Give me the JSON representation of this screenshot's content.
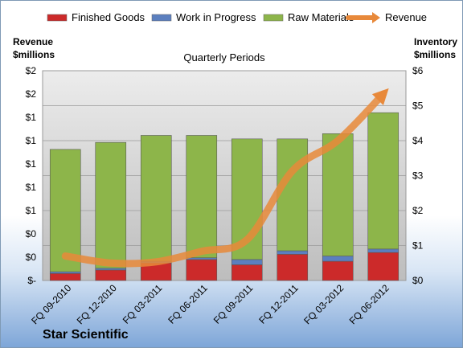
{
  "company_name": "Star Scientific",
  "chart_data": {
    "type": "bar",
    "stacked": true,
    "title": "Quarterly Periods",
    "left_axis_title": [
      "Revenue",
      "$millions"
    ],
    "right_axis_title": [
      "Inventory",
      "$millions"
    ],
    "categories": [
      "FQ 09-2010",
      "FQ 12-2010",
      "FQ 03-2011",
      "FQ 06-2011",
      "FQ 09-2011",
      "FQ 12-2011",
      "FQ 03-2012",
      "FQ 06-2012"
    ],
    "left_ticks": [
      "$-",
      "$0",
      "$0",
      "$1",
      "$1",
      "$1",
      "$1",
      "$1",
      "$2",
      "$2"
    ],
    "right_ticks": [
      "$0",
      "$1",
      "$2",
      "$3",
      "$4",
      "$5",
      "$6"
    ],
    "ylim_right": [
      0,
      6
    ],
    "ylim_left": [
      0,
      1.8
    ],
    "grid": true,
    "legend_position": "top",
    "series": [
      {
        "name": "Finished Goods",
        "color": "#cc2a2a",
        "values": [
          0.2,
          0.3,
          0.5,
          0.6,
          0.45,
          0.75,
          0.55,
          0.8
        ]
      },
      {
        "name": "Work in Progress",
        "color": "#5b7fbf",
        "values": [
          0.05,
          0.05,
          0.05,
          0.05,
          0.15,
          0.1,
          0.15,
          0.1
        ]
      },
      {
        "name": "Raw Materials",
        "color": "#8db54a",
        "values": [
          3.5,
          3.6,
          3.6,
          3.5,
          3.45,
          3.2,
          3.5,
          3.9
        ]
      }
    ],
    "line_series": {
      "name": "Revenue",
      "color": "#e8893a",
      "axis": "left",
      "values": [
        0.21,
        0.15,
        0.16,
        0.25,
        0.35,
        0.94,
        1.2,
        1.6
      ]
    }
  }
}
